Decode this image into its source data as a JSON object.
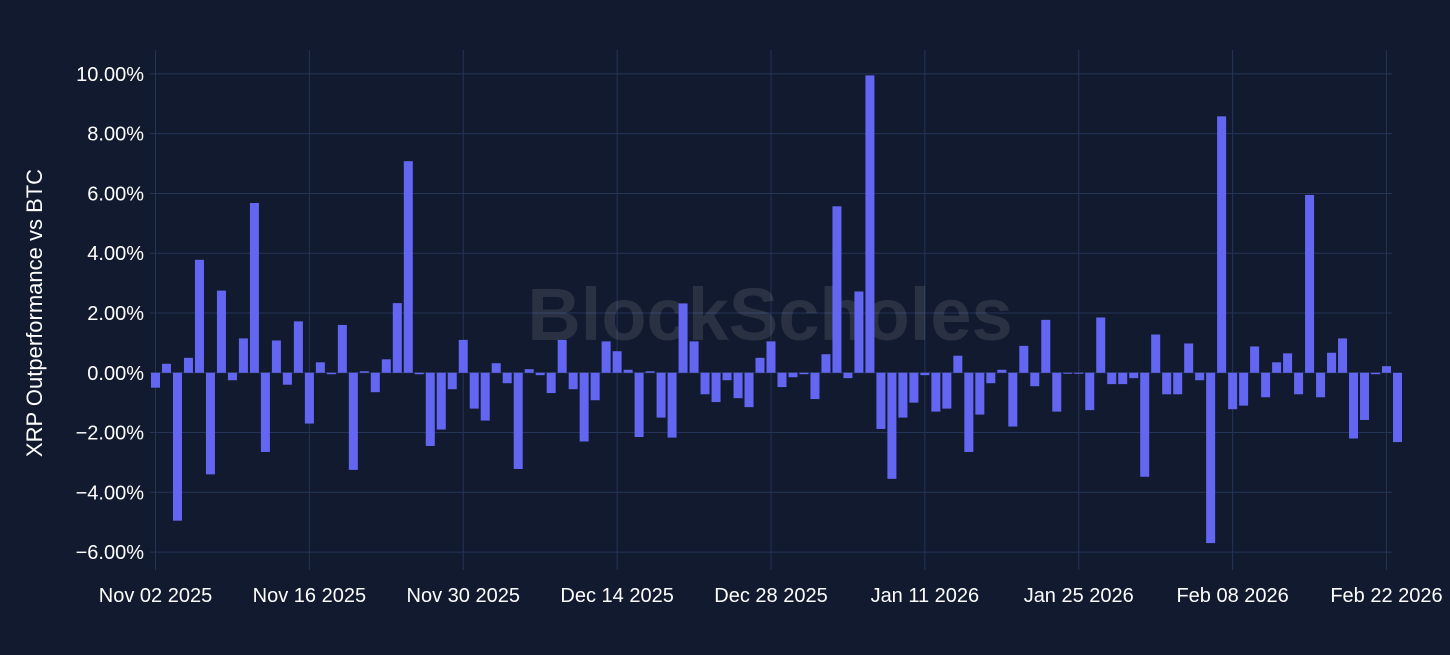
{
  "chart_data": {
    "type": "bar",
    "ylabel": "XRP Outperformance vs BTC",
    "watermark": "BlockScholes",
    "x_start": "2025-11-02",
    "x_tick_labels": [
      "Nov 02 2025",
      "Nov 16 2025",
      "Nov 30 2025",
      "Dec 14 2025",
      "Dec 28 2025",
      "Jan 11 2026",
      "Jan 25 2026",
      "Feb 08 2026",
      "Feb 22 2026"
    ],
    "y_tick_labels": [
      "10.00%",
      "8.00%",
      "6.00%",
      "4.00%",
      "2.00%",
      "0.00%",
      "−2.00%",
      "−4.00%",
      "−6.00%"
    ],
    "y_ticks": [
      10,
      8,
      6,
      4,
      2,
      0,
      -2,
      -4,
      -6
    ],
    "ylim": [
      -6.6,
      10.8
    ],
    "xlim_days": [
      -0.5,
      112.5
    ],
    "grid": true,
    "bar_color": "#6366f1",
    "values": [
      -0.5,
      0.3,
      -4.95,
      0.5,
      3.78,
      -3.4,
      2.75,
      -0.25,
      1.15,
      5.68,
      -2.65,
      1.08,
      -0.4,
      1.72,
      -1.7,
      0.35,
      -0.05,
      1.6,
      -3.25,
      0.05,
      -0.65,
      0.45,
      2.33,
      7.08,
      -0.05,
      -2.45,
      -1.9,
      -0.55,
      1.1,
      -1.2,
      -1.6,
      0.32,
      -0.35,
      -3.22,
      0.12,
      -0.08,
      -0.68,
      1.1,
      -0.55,
      -2.3,
      -0.92,
      1.05,
      0.72,
      0.1,
      -2.15,
      0.05,
      -1.5,
      -2.17,
      2.32,
      1.05,
      -0.72,
      -0.98,
      -0.25,
      -0.85,
      -1.15,
      0.5,
      1.05,
      -0.48,
      -0.15,
      -0.05,
      -0.88,
      0.62,
      5.57,
      -0.18,
      2.72,
      9.95,
      -1.88,
      -3.55,
      -1.5,
      -1.0,
      -0.08,
      -1.3,
      -1.2,
      0.57,
      -2.65,
      -1.4,
      -0.35,
      0.1,
      -1.8,
      0.9,
      -0.45,
      1.77,
      -1.3,
      -0.02,
      0.0,
      -1.25,
      1.85,
      -0.38,
      -0.38,
      -0.18,
      -3.48,
      1.28,
      -0.72,
      -0.72,
      0.98,
      -0.25,
      -5.7,
      8.58,
      -1.22,
      -1.1,
      0.88,
      -0.82,
      0.35,
      0.65,
      -0.72,
      5.95,
      -0.82,
      0.67,
      1.15,
      -2.2,
      -1.58,
      -0.05,
      0.22,
      -2.32
    ]
  }
}
